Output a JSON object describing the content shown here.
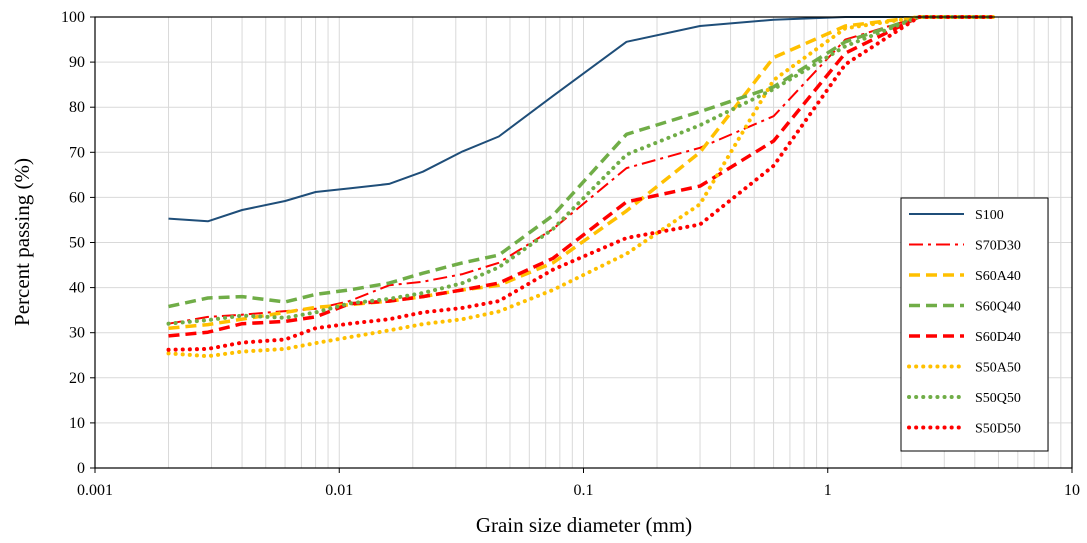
{
  "chart_data": {
    "type": "line",
    "title": "",
    "xlabel": "Grain size diameter (mm)",
    "ylabel": "Percent passing (%)",
    "xscale": "log",
    "xlim": [
      0.001,
      10
    ],
    "ylim": [
      0,
      100
    ],
    "grid": true,
    "legend_position": "right",
    "x_tick_labels": [
      "0.001",
      "0.01",
      "0.1",
      "1",
      "10"
    ],
    "y_tick_labels": [
      "0",
      "10",
      "20",
      "30",
      "40",
      "50",
      "60",
      "70",
      "80",
      "90",
      "100"
    ],
    "series": [
      {
        "name": "S100",
        "color": "#1f4e79",
        "dash": "solid",
        "points": [
          [
            0.002,
            55.3
          ],
          [
            0.0029,
            54.7
          ],
          [
            0.004,
            57.2
          ],
          [
            0.006,
            59.2
          ],
          [
            0.008,
            61.2
          ],
          [
            0.011,
            62.0
          ],
          [
            0.016,
            63.0
          ],
          [
            0.022,
            65.7
          ],
          [
            0.032,
            70.2
          ],
          [
            0.045,
            73.5
          ],
          [
            0.075,
            82.5
          ],
          [
            0.15,
            94.5
          ],
          [
            0.3,
            98.0
          ],
          [
            0.6,
            99.4
          ],
          [
            1.18,
            100
          ],
          [
            2.36,
            100
          ],
          [
            4.75,
            100
          ]
        ]
      },
      {
        "name": "S70D30",
        "color": "#ff0000",
        "dash": "dashdot",
        "points": [
          [
            0.002,
            32.0
          ],
          [
            0.0029,
            33.5
          ],
          [
            0.004,
            34.0
          ],
          [
            0.006,
            34.8
          ],
          [
            0.008,
            35.3
          ],
          [
            0.011,
            37.0
          ],
          [
            0.016,
            40.5
          ],
          [
            0.022,
            41.3
          ],
          [
            0.032,
            43.0
          ],
          [
            0.045,
            45.5
          ],
          [
            0.075,
            53.0
          ],
          [
            0.15,
            66.5
          ],
          [
            0.3,
            71.0
          ],
          [
            0.6,
            78.0
          ],
          [
            1.18,
            95.0
          ],
          [
            2.36,
            100
          ],
          [
            4.75,
            100
          ]
        ]
      },
      {
        "name": "S60A40",
        "color": "#ffc000",
        "dash": "dash",
        "points": [
          [
            0.002,
            31.0
          ],
          [
            0.0029,
            31.8
          ],
          [
            0.004,
            33.0
          ],
          [
            0.006,
            34.5
          ],
          [
            0.008,
            35.6
          ],
          [
            0.011,
            36.2
          ],
          [
            0.016,
            37.0
          ],
          [
            0.022,
            38.0
          ],
          [
            0.032,
            39.5
          ],
          [
            0.045,
            40.5
          ],
          [
            0.075,
            45.5
          ],
          [
            0.15,
            57.0
          ],
          [
            0.3,
            70.0
          ],
          [
            0.6,
            91.0
          ],
          [
            1.18,
            98.0
          ],
          [
            2.36,
            100
          ],
          [
            4.75,
            100
          ]
        ]
      },
      {
        "name": "S60Q40",
        "color": "#70ad47",
        "dash": "dash",
        "points": [
          [
            0.002,
            35.8
          ],
          [
            0.0029,
            37.7
          ],
          [
            0.004,
            38.0
          ],
          [
            0.006,
            36.8
          ],
          [
            0.008,
            38.5
          ],
          [
            0.011,
            39.5
          ],
          [
            0.016,
            41.0
          ],
          [
            0.022,
            43.2
          ],
          [
            0.032,
            45.5
          ],
          [
            0.045,
            47.2
          ],
          [
            0.075,
            56.0
          ],
          [
            0.15,
            74.0
          ],
          [
            0.3,
            79.0
          ],
          [
            0.6,
            84.5
          ],
          [
            1.18,
            94.5
          ],
          [
            2.36,
            100
          ],
          [
            4.75,
            100
          ]
        ]
      },
      {
        "name": "S60D40",
        "color": "#ff0000",
        "dash": "dash",
        "points": [
          [
            0.002,
            29.3
          ],
          [
            0.0029,
            30.1
          ],
          [
            0.004,
            32.0
          ],
          [
            0.006,
            32.5
          ],
          [
            0.008,
            33.5
          ],
          [
            0.011,
            36.4
          ],
          [
            0.016,
            37.0
          ],
          [
            0.022,
            38.0
          ],
          [
            0.032,
            39.5
          ],
          [
            0.045,
            41.0
          ],
          [
            0.075,
            46.5
          ],
          [
            0.15,
            59.0
          ],
          [
            0.3,
            62.5
          ],
          [
            0.6,
            72.5
          ],
          [
            1.18,
            92.0
          ],
          [
            2.36,
            100
          ],
          [
            4.75,
            100
          ]
        ]
      },
      {
        "name": "S50A50",
        "color": "#ffc000",
        "dash": "dot",
        "points": [
          [
            0.002,
            25.4
          ],
          [
            0.0029,
            24.8
          ],
          [
            0.004,
            25.8
          ],
          [
            0.006,
            26.4
          ],
          [
            0.008,
            27.7
          ],
          [
            0.011,
            29.0
          ],
          [
            0.016,
            30.5
          ],
          [
            0.022,
            31.9
          ],
          [
            0.032,
            33.0
          ],
          [
            0.045,
            34.7
          ],
          [
            0.075,
            39.5
          ],
          [
            0.15,
            47.5
          ],
          [
            0.3,
            58.5
          ],
          [
            0.6,
            86.0
          ],
          [
            1.18,
            97.5
          ],
          [
            2.36,
            100
          ],
          [
            4.75,
            100
          ]
        ]
      },
      {
        "name": "S50Q50",
        "color": "#70ad47",
        "dash": "dot",
        "points": [
          [
            0.002,
            32.0
          ],
          [
            0.0029,
            32.8
          ],
          [
            0.004,
            33.8
          ],
          [
            0.006,
            33.3
          ],
          [
            0.008,
            34.5
          ],
          [
            0.011,
            36.5
          ],
          [
            0.016,
            37.5
          ],
          [
            0.022,
            38.8
          ],
          [
            0.032,
            41.0
          ],
          [
            0.045,
            44.5
          ],
          [
            0.075,
            53.0
          ],
          [
            0.15,
            69.5
          ],
          [
            0.3,
            76.0
          ],
          [
            0.6,
            84.0
          ],
          [
            1.18,
            93.5
          ],
          [
            2.36,
            100
          ],
          [
            4.75,
            100
          ]
        ]
      },
      {
        "name": "S50D50",
        "color": "#ff0000",
        "dash": "dot",
        "points": [
          [
            0.002,
            26.2
          ],
          [
            0.0029,
            26.4
          ],
          [
            0.004,
            27.8
          ],
          [
            0.006,
            28.5
          ],
          [
            0.008,
            31.0
          ],
          [
            0.011,
            32.0
          ],
          [
            0.016,
            33.0
          ],
          [
            0.022,
            34.5
          ],
          [
            0.032,
            35.5
          ],
          [
            0.045,
            37.0
          ],
          [
            0.075,
            44.0
          ],
          [
            0.15,
            51.0
          ],
          [
            0.3,
            54.0
          ],
          [
            0.6,
            67.0
          ],
          [
            1.18,
            89.5
          ],
          [
            2.36,
            100
          ],
          [
            4.75,
            100
          ]
        ]
      }
    ]
  }
}
